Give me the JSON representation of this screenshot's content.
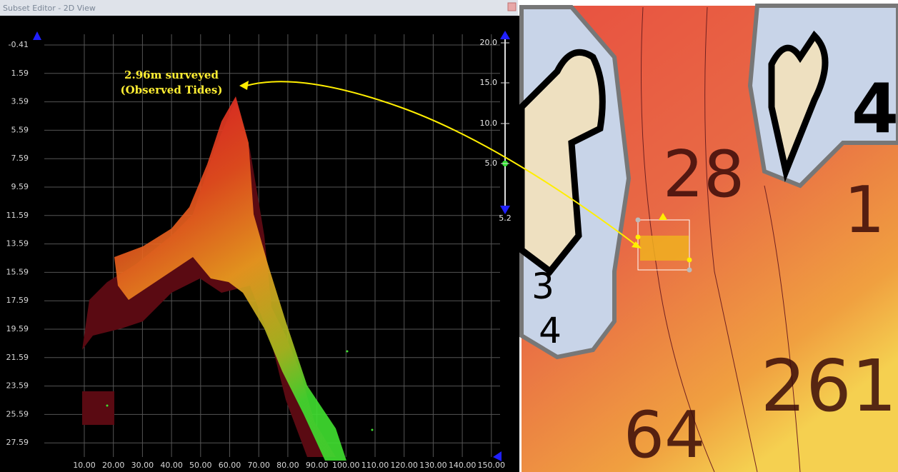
{
  "window": {
    "title": "Subset Editor - 2D View"
  },
  "profile_view": {
    "y_axis_labels": [
      "-0.41",
      "1.59",
      "3.59",
      "5.59",
      "7.59",
      "9.59",
      "11.59",
      "13.59",
      "15.59",
      "17.59",
      "19.59",
      "21.59",
      "23.59",
      "25.59",
      "27.59"
    ],
    "x_axis_labels": [
      "10.00",
      "20.00",
      "30.00",
      "40.00",
      "50.00",
      "60.00",
      "70.00",
      "80.00",
      "90.00",
      "100.00",
      "110.00",
      "120.00",
      "130.00",
      "140.00",
      "150.00"
    ],
    "slider_labels": [
      "20.0",
      "15.0",
      "10.0",
      "5.0",
      "5.2"
    ],
    "annotation": [
      "2.96m surveyed",
      "(Observed Tides)"
    ]
  },
  "map_view": {
    "soundings": [
      "28",
      "4",
      "3",
      "4",
      "261",
      "64",
      "1"
    ]
  }
}
